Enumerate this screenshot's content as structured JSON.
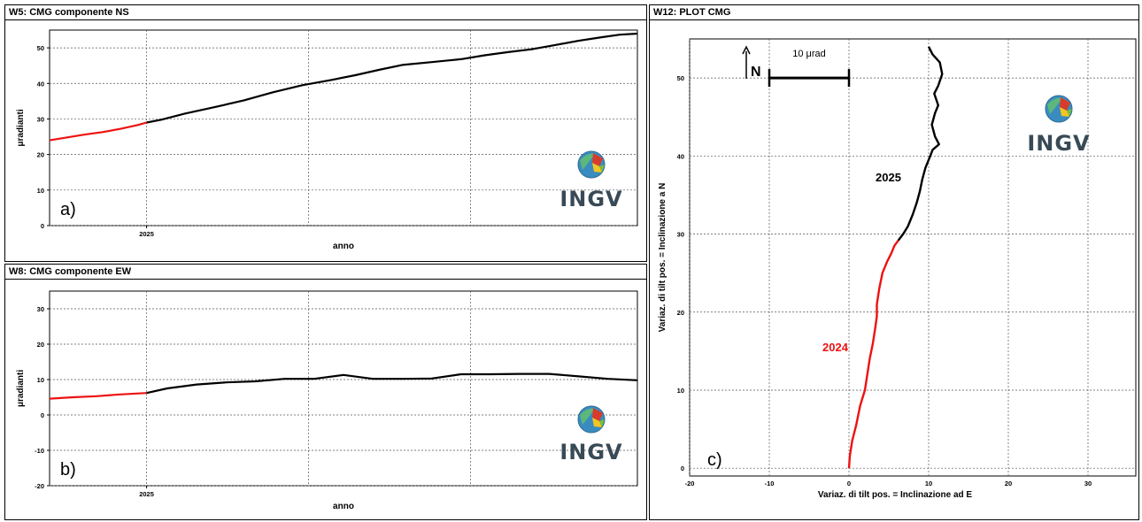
{
  "panels": {
    "ns": {
      "title": "W5: CMG componente NS",
      "letter": "a)"
    },
    "ew": {
      "title": "W8: CMG componente EW",
      "letter": "b)"
    },
    "plot": {
      "title": "W12: PLOT CMG",
      "letter": "c)"
    }
  },
  "logo": {
    "text": "INGV",
    "icon": "globe-icon"
  },
  "colors": {
    "year_2024": "#ee1111",
    "year_2025": "#000000"
  },
  "chart_data": [
    {
      "type": "line",
      "title": "W5: CMG componente NS",
      "xlabel": "anno",
      "ylabel": "μradianti",
      "xticks": [
        "2025"
      ],
      "yticks": [
        0,
        10,
        20,
        30,
        40,
        50
      ],
      "ylim": [
        0,
        55
      ],
      "x_range_fraction_2025": 0.165,
      "grid": true,
      "series": [
        {
          "name": "2024",
          "color": "#ee1111",
          "x": [
            0,
            0.03,
            0.06,
            0.09,
            0.12,
            0.15,
            0.165
          ],
          "y": [
            24,
            24.8,
            25.6,
            26.3,
            27.2,
            28.3,
            29
          ]
        },
        {
          "name": "2025",
          "color": "#000000",
          "x": [
            0.165,
            0.19,
            0.23,
            0.28,
            0.33,
            0.38,
            0.43,
            0.48,
            0.52,
            0.56,
            0.6,
            0.65,
            0.7,
            0.74,
            0.78,
            0.82,
            0.86,
            0.9,
            0.94,
            0.97,
            1.0
          ],
          "y": [
            29,
            29.8,
            31.5,
            33.3,
            35.2,
            37.5,
            39.5,
            41,
            42.3,
            43.8,
            45.2,
            46,
            46.8,
            47.9,
            48.8,
            49.6,
            50.8,
            52,
            53,
            53.7,
            54
          ]
        }
      ]
    },
    {
      "type": "line",
      "title": "W8: CMG componente EW",
      "xlabel": "anno",
      "ylabel": "μradianti",
      "xticks": [
        "2025"
      ],
      "yticks": [
        -20,
        -10,
        0,
        10,
        20,
        30
      ],
      "ylim": [
        -20,
        35
      ],
      "grid": true,
      "series": [
        {
          "name": "2024",
          "color": "#ee1111",
          "x": [
            0,
            0.04,
            0.08,
            0.12,
            0.165
          ],
          "y": [
            4.6,
            5,
            5.3,
            5.8,
            6.2
          ]
        },
        {
          "name": "2025",
          "color": "#000000",
          "x": [
            0.165,
            0.2,
            0.25,
            0.3,
            0.35,
            0.4,
            0.45,
            0.5,
            0.55,
            0.6,
            0.65,
            0.7,
            0.75,
            0.8,
            0.85,
            0.9,
            0.95,
            1.0
          ],
          "y": [
            6.2,
            7.5,
            8.6,
            9.2,
            9.5,
            10.2,
            10.2,
            11.3,
            10.2,
            10.2,
            10.3,
            11.5,
            11.5,
            11.6,
            11.6,
            10.9,
            10.2,
            9.8
          ]
        }
      ]
    },
    {
      "type": "scatter",
      "title": "W12: PLOT CMG",
      "xlabel": "Variaz. di tilt pos. = Inclinazione ad E",
      "ylabel": "Variaz. di tilt pos. = Inclinazione a N",
      "xticks": [
        -20,
        -10,
        0,
        10,
        20,
        30
      ],
      "yticks": [
        0,
        10,
        20,
        30,
        40,
        50
      ],
      "xlim": [
        -20,
        36
      ],
      "ylim": [
        -1,
        55
      ],
      "grid": true,
      "scale_bar": "10 μrad",
      "north_label": "N",
      "series": [
        {
          "name": "2024",
          "color": "#ee1111",
          "x": [
            0,
            0.1,
            0.4,
            0.9,
            1.4,
            2,
            2.3,
            2.6,
            3,
            3.3,
            3.5,
            3.5,
            3.8,
            4.2,
            4.8,
            5.3,
            5.7,
            6.2
          ],
          "y": [
            0,
            1.5,
            3.5,
            5.5,
            8,
            10,
            12,
            14,
            16,
            18,
            19.5,
            21,
            23,
            25,
            26.5,
            27.5,
            28.5,
            29.2
          ]
        },
        {
          "name": "2025",
          "color": "#000000",
          "x": [
            6.2,
            6.8,
            7.4,
            8,
            8.5,
            8.9,
            9.2,
            9.6,
            10,
            10.2,
            10.5,
            11.3,
            10.8,
            10.4,
            10.8,
            11.2,
            10.7,
            11.2,
            11.7,
            11.4,
            10.5,
            10
          ],
          "y": [
            29.2,
            30,
            31,
            32.5,
            34,
            35.5,
            37,
            38.5,
            39.5,
            40,
            40.8,
            41.5,
            42.5,
            44,
            45.5,
            46.5,
            48,
            49,
            50.5,
            52,
            53,
            54
          ]
        }
      ],
      "annotations": [
        "2025",
        "2024"
      ]
    }
  ]
}
